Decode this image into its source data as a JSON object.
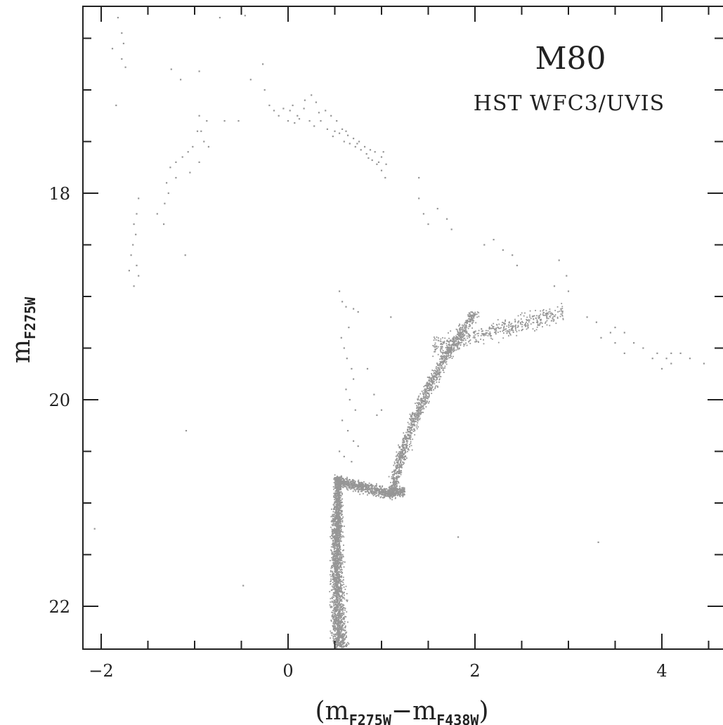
{
  "chart_data": {
    "type": "scatter",
    "title": "M80",
    "subtitle": "HST WFC3/UVIS",
    "xlabel": {
      "open": "(",
      "a": "m",
      "a_sub": "F275W",
      "minus": "−",
      "b": "m",
      "b_sub": "F438W",
      "close": ")"
    },
    "ylabel": {
      "main": "m",
      "sub": "F275W"
    },
    "xlim": [
      -2.2,
      4.7
    ],
    "ylim": [
      22.4,
      16.2
    ],
    "y_inverted": true,
    "xticks": [
      -2,
      0,
      2,
      4
    ],
    "xtick_labels": [
      "−2",
      "0",
      "2",
      "4"
    ],
    "yticks": [
      18,
      20,
      22
    ],
    "ytick_labels": [
      "18",
      "20",
      "22"
    ],
    "point_color": "#969696",
    "grid": false,
    "features": {
      "main_sequence_turnoff": {
        "x": 0.6,
        "y": 20.75
      },
      "horizontal_branch_blue": {
        "x_range": [
          -1.75,
          -0.9
        ],
        "y_range": [
          17.2,
          18.6
        ]
      },
      "horizontal_branch_top": {
        "x_range": [
          0.2,
          1.1
        ],
        "y_range": [
          17.0,
          17.7
        ]
      },
      "red_giant_branch": {
        "x_range": [
          1.0,
          4.5
        ],
        "y_range": [
          19.1,
          20.9
        ]
      }
    },
    "points": [
      [
        -2.07,
        21.25
      ],
      [
        -1.82,
        16.3
      ],
      [
        -1.78,
        16.45
      ],
      [
        -1.76,
        16.55
      ],
      [
        -1.88,
        16.6
      ],
      [
        -1.78,
        16.7
      ],
      [
        -1.74,
        16.78
      ],
      [
        -1.84,
        17.15
      ],
      [
        -1.25,
        16.8
      ],
      [
        -1.15,
        16.9
      ],
      [
        -0.95,
        16.82
      ],
      [
        -0.73,
        16.3
      ],
      [
        -0.46,
        16.28
      ],
      [
        -0.27,
        16.75
      ],
      [
        -0.4,
        16.9
      ],
      [
        -0.25,
        17.0
      ],
      [
        -0.95,
        17.25
      ],
      [
        -0.87,
        17.3
      ],
      [
        -0.97,
        17.4
      ],
      [
        -0.9,
        17.5
      ],
      [
        -1.02,
        17.55
      ],
      [
        -1.07,
        17.6
      ],
      [
        -1.13,
        17.65
      ],
      [
        -1.2,
        17.7
      ],
      [
        -1.26,
        17.75
      ],
      [
        -0.95,
        17.7
      ],
      [
        -1.05,
        17.8
      ],
      [
        -1.2,
        17.85
      ],
      [
        -1.3,
        17.9
      ],
      [
        -1.28,
        18.0
      ],
      [
        -1.32,
        18.1
      ],
      [
        -1.4,
        18.2
      ],
      [
        -1.33,
        18.3
      ],
      [
        -1.1,
        18.6
      ],
      [
        -1.6,
        18.05
      ],
      [
        -1.62,
        18.2
      ],
      [
        -1.65,
        18.3
      ],
      [
        -1.63,
        18.4
      ],
      [
        -1.66,
        18.5
      ],
      [
        -1.68,
        18.6
      ],
      [
        -1.62,
        18.7
      ],
      [
        -1.7,
        18.75
      ],
      [
        -1.6,
        18.8
      ],
      [
        -1.65,
        18.9
      ],
      [
        -0.68,
        17.3
      ],
      [
        -0.53,
        17.3
      ],
      [
        -0.93,
        17.4
      ],
      [
        -0.85,
        17.55
      ],
      [
        -1.09,
        20.3
      ],
      [
        -0.48,
        21.8
      ],
      [
        1.82,
        21.33
      ],
      [
        3.32,
        21.38
      ],
      [
        0.05,
        17.15
      ],
      [
        0.1,
        17.25
      ],
      [
        0.17,
        17.18
      ],
      [
        0.23,
        17.3
      ],
      [
        0.28,
        17.35
      ],
      [
        0.35,
        17.3
      ],
      [
        0.42,
        17.38
      ],
      [
        0.48,
        17.45
      ],
      [
        0.55,
        17.42
      ],
      [
        0.6,
        17.5
      ],
      [
        0.66,
        17.52
      ],
      [
        0.72,
        17.55
      ],
      [
        0.78,
        17.58
      ],
      [
        0.84,
        17.62
      ],
      [
        0.9,
        17.68
      ],
      [
        0.95,
        17.72
      ],
      [
        1.0,
        17.78
      ],
      [
        1.04,
        17.85
      ],
      [
        0.25,
        17.05
      ],
      [
        0.3,
        17.12
      ],
      [
        0.4,
        17.2
      ],
      [
        0.46,
        17.25
      ],
      [
        0.52,
        17.3
      ],
      [
        0.58,
        17.38
      ],
      [
        0.64,
        17.44
      ],
      [
        0.7,
        17.47
      ],
      [
        0.76,
        17.5
      ],
      [
        0.82,
        17.55
      ],
      [
        0.88,
        17.58
      ],
      [
        0.93,
        17.6
      ],
      [
        1.0,
        17.65
      ],
      [
        1.05,
        17.72
      ],
      [
        0.18,
        17.1
      ],
      [
        0.33,
        17.22
      ],
      [
        0.5,
        17.4
      ],
      [
        0.62,
        17.4
      ],
      [
        0.74,
        17.52
      ],
      [
        0.86,
        17.66
      ],
      [
        0.97,
        17.7
      ],
      [
        1.02,
        17.6
      ],
      [
        -0.2,
        17.15
      ],
      [
        -0.15,
        17.2
      ],
      [
        -0.1,
        17.25
      ],
      [
        -0.05,
        17.18
      ],
      [
        0.0,
        17.3
      ],
      [
        0.02,
        17.2
      ],
      [
        0.07,
        17.32
      ],
      [
        0.12,
        17.28
      ],
      [
        1.4,
        17.85
      ],
      [
        1.4,
        18.05
      ],
      [
        1.45,
        18.2
      ],
      [
        1.6,
        18.15
      ],
      [
        1.7,
        18.25
      ],
      [
        1.75,
        18.35
      ],
      [
        1.5,
        18.3
      ],
      [
        2.2,
        18.45
      ],
      [
        2.1,
        18.5
      ],
      [
        2.3,
        18.55
      ],
      [
        2.4,
        18.6
      ],
      [
        2.45,
        18.7
      ],
      [
        2.9,
        18.65
      ],
      [
        2.98,
        18.8
      ],
      [
        3.0,
        18.95
      ],
      [
        2.85,
        18.9
      ],
      [
        0.55,
        18.95
      ],
      [
        0.58,
        19.05
      ],
      [
        0.62,
        19.1
      ],
      [
        0.7,
        19.12
      ],
      [
        0.75,
        19.15
      ],
      [
        1.1,
        19.2
      ],
      [
        0.65,
        19.3
      ],
      [
        0.57,
        19.4
      ],
      [
        0.6,
        19.5
      ],
      [
        0.63,
        19.6
      ],
      [
        0.68,
        19.7
      ],
      [
        0.7,
        19.8
      ],
      [
        0.62,
        19.9
      ],
      [
        0.66,
        20.0
      ],
      [
        0.72,
        20.1
      ],
      [
        0.58,
        20.2
      ],
      [
        0.64,
        20.3
      ],
      [
        0.7,
        20.4
      ],
      [
        0.75,
        20.45
      ],
      [
        0.55,
        20.5
      ],
      [
        0.6,
        20.55
      ],
      [
        0.68,
        20.6
      ],
      [
        0.95,
        20.15
      ],
      [
        1.0,
        20.1
      ],
      [
        0.92,
        19.95
      ],
      [
        0.85,
        19.7
      ],
      [
        3.2,
        19.2
      ],
      [
        3.3,
        19.25
      ],
      [
        3.5,
        19.3
      ],
      [
        3.6,
        19.35
      ],
      [
        3.7,
        19.45
      ],
      [
        3.8,
        19.5
      ],
      [
        3.95,
        19.55
      ],
      [
        4.05,
        19.6
      ],
      [
        4.1,
        19.55
      ],
      [
        4.2,
        19.55
      ],
      [
        4.3,
        19.6
      ],
      [
        4.45,
        19.65
      ],
      [
        3.5,
        19.45
      ],
      [
        3.6,
        19.55
      ],
      [
        3.9,
        19.6
      ],
      [
        4.0,
        19.7
      ],
      [
        4.1,
        19.65
      ],
      [
        3.35,
        19.4
      ],
      [
        3.45,
        19.35
      ]
    ],
    "density_regions": [
      {
        "x_center": 0.55,
        "x_spread": 0.06,
        "y_range": [
          20.75,
          22.4
        ],
        "n": 2200,
        "curve": "ms"
      },
      {
        "x_center": 0.8,
        "x_spread": 0.12,
        "y_range": [
          20.6,
          20.95
        ],
        "n": 900,
        "curve": "sgb"
      },
      {
        "x_center": 1.35,
        "x_spread": 0.12,
        "y_range": [
          19.1,
          20.95
        ],
        "n": 1300,
        "curve": "rgb"
      },
      {
        "x_center": 2.4,
        "x_spread": 0.3,
        "y_range": [
          19.05,
          19.55
        ],
        "n": 450,
        "curve": "rgbtop"
      }
    ]
  }
}
